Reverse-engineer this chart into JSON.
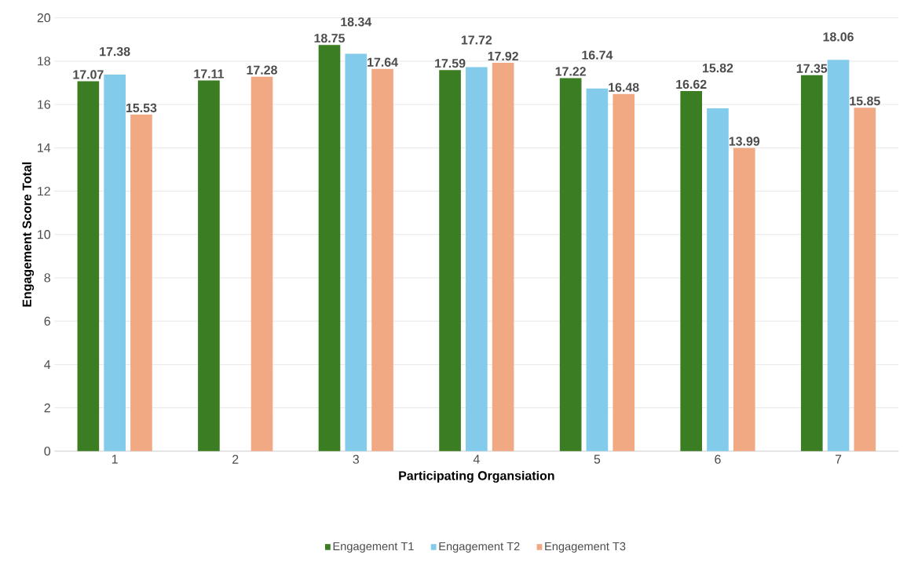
{
  "chart_data": {
    "type": "bar",
    "xlabel": "Participating Organsiation",
    "ylabel": "Engagement Score Total",
    "categories": [
      "1",
      "2",
      "3",
      "4",
      "5",
      "6",
      "7"
    ],
    "series": [
      {
        "name": "Engagement T1",
        "color": "#3a7d22",
        "values": [
          17.07,
          17.11,
          18.75,
          17.59,
          17.22,
          16.62,
          17.35
        ]
      },
      {
        "name": "Engagement T2",
        "color": "#83cbeb",
        "values": [
          17.38,
          null,
          18.34,
          17.72,
          16.74,
          15.82,
          18.06
        ]
      },
      {
        "name": "Engagement T3",
        "color": "#f1a983",
        "values": [
          15.53,
          17.28,
          17.64,
          17.92,
          16.48,
          13.99,
          15.85
        ]
      }
    ],
    "ylim": [
      0,
      20
    ],
    "yticks": [
      0,
      2,
      4,
      6,
      8,
      10,
      12,
      14,
      16,
      18,
      20
    ],
    "grid": "y",
    "legend": "bottom",
    "data_labels": true
  }
}
